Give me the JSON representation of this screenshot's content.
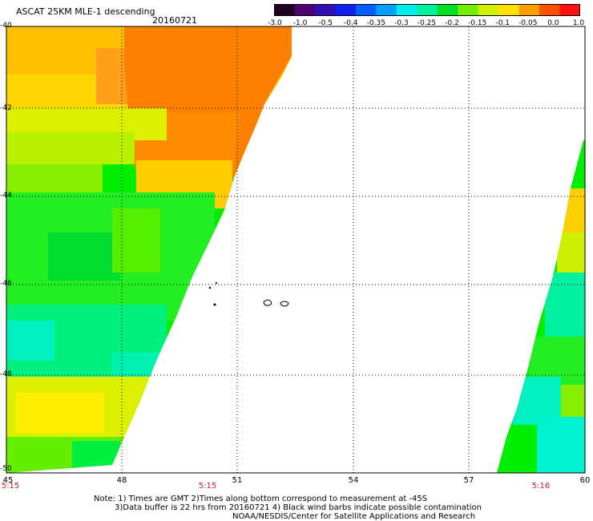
{
  "header": {
    "title": "ASCAT 25KM MLE-1 descending",
    "date": "20160721"
  },
  "colorbar": {
    "labels": [
      "-3.0",
      "-1.0",
      "-0.5",
      "-0.4",
      "-0.35",
      "-0.3",
      "-0.25",
      "-0.2",
      "-0.15",
      "-0.1",
      "-0.05",
      "0.0",
      "1.0"
    ],
    "colors": [
      "#200020",
      "#500070",
      "#3010b0",
      "#1020f0",
      "#0060ff",
      "#00a0ff",
      "#00f0f0",
      "#00f0a0",
      "#00e020",
      "#70f000",
      "#d0f000",
      "#ffe000",
      "#ffa000",
      "#ff5000",
      "#ff1010"
    ]
  },
  "axes": {
    "lat_labels": [
      "-40",
      "-42",
      "-44",
      "-46",
      "-48",
      "-50"
    ],
    "lon_labels": [
      "45",
      "48",
      "51",
      "54",
      "57",
      "60"
    ],
    "time_labels": [
      "5:15",
      "5:15",
      "5:16"
    ]
  },
  "notes": {
    "line1": "Note: 1) Times are GMT 2)Times along bottom correspond to measurement at -45S",
    "line2": "3)Data buffer is 22 hrs from 20160721 4) Black wind barbs indicate possible contamination",
    "line3": "NOAA/NESDIS/Center for Satellite Applications and Research"
  },
  "palette": {
    "orange": "#ff8c00",
    "light_orange": "#ffa500",
    "yellow": "#ffff00",
    "lime": "#aaff00",
    "green": "#00ff00",
    "cyan_green": "#00ffaa",
    "cyan": "#00ffff"
  }
}
